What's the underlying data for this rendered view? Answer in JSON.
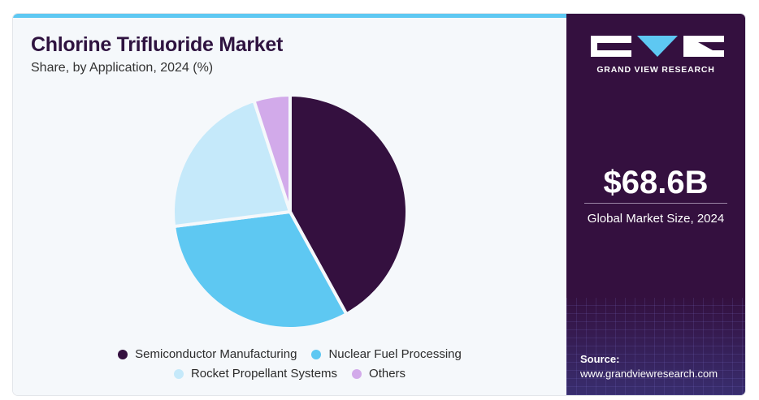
{
  "header": {
    "title": "Chlorine Trifluoride Market",
    "subtitle": "Share, by Application, 2024 (%)"
  },
  "chart_data": {
    "type": "pie",
    "categories": [
      "Semiconductor Manufacturing",
      "Nuclear Fuel Processing",
      "Rocket Propellant Systems",
      "Others"
    ],
    "values": [
      42,
      31,
      22,
      5
    ],
    "colors": [
      "#34103f",
      "#5ec8f2",
      "#c5e9fa",
      "#d2aaea"
    ],
    "legend_position": "bottom"
  },
  "sidebar": {
    "brand": "GRAND VIEW RESEARCH",
    "market_value": "$68.6B",
    "market_label": "Global Market Size, 2024",
    "source_label": "Source:",
    "source_url": "www.grandviewresearch.com"
  }
}
